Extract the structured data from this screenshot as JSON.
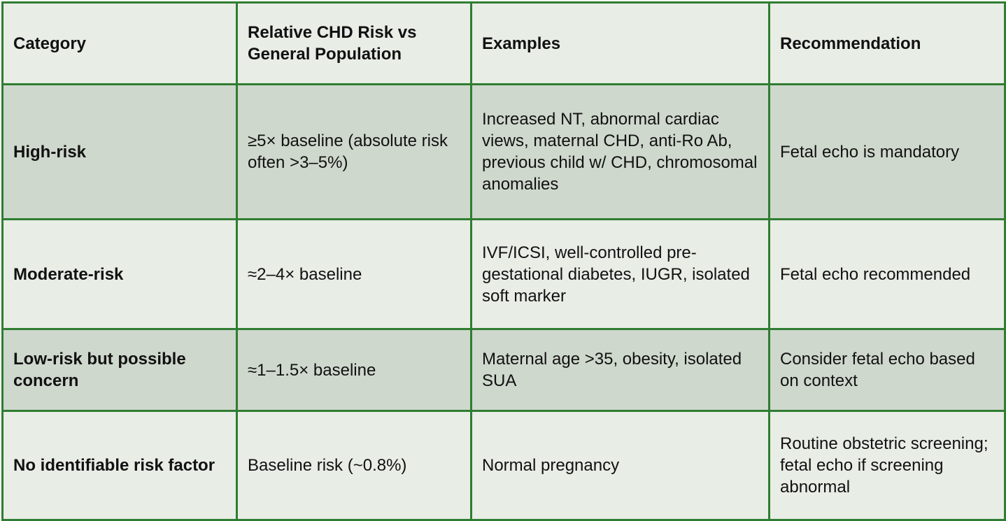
{
  "table": {
    "headers": [
      "Category",
      "Relative CHD Risk vs General Population",
      "Examples",
      "Recommendation"
    ],
    "rows": [
      {
        "category": "High-risk",
        "risk": "≥5× baseline (absolute risk often >3–5%)",
        "examples": "Increased NT, abnormal cardiac views, maternal CHD, anti-Ro Ab, previous child w/ CHD, chromosomal anomalies",
        "recommendation": "Fetal echo is mandatory"
      },
      {
        "category": "Moderate-risk",
        "risk": "≈2–4× baseline",
        "examples": "IVF/ICSI, well-controlled pre-gestational diabetes, IUGR, isolated soft marker",
        "recommendation": "Fetal echo recommended"
      },
      {
        "category": "Low-risk but possible concern",
        "risk": "≈1–1.5× baseline",
        "examples": "Maternal age >35, obesity, isolated SUA",
        "recommendation": "Consider fetal echo based on context"
      },
      {
        "category": "No identifiable risk factor",
        "risk": "Baseline risk (~0.8%)",
        "examples": "Normal pregnancy",
        "recommendation": "Routine obstetric screening; fetal echo if screening abnormal"
      }
    ]
  },
  "colors": {
    "border": "#2f7d32",
    "light_row": "#e8ede6",
    "dark_row": "#cfd8cd"
  }
}
